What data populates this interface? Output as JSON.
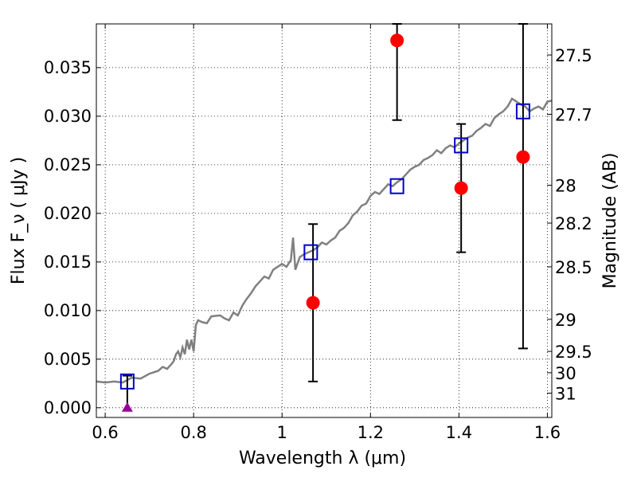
{
  "chart_data": {
    "type": "scatter",
    "xlabel": "Wavelength  λ (μm)",
    "ylabel": "Flux  F_ν  ( μJy )",
    "ylabel_right": "Magnitude (AB)",
    "xlim": [
      0.58,
      1.61
    ],
    "ylim": [
      -0.001,
      0.0395
    ],
    "grid": true,
    "x_ticks": [
      {
        "value": 0.6,
        "label": "0.6"
      },
      {
        "value": 0.8,
        "label": "0.8"
      },
      {
        "value": 1.0,
        "label": "1"
      },
      {
        "value": 1.2,
        "label": "1.2"
      },
      {
        "value": 1.4,
        "label": "1.4"
      },
      {
        "value": 1.6,
        "label": "1.6"
      }
    ],
    "y_ticks": [
      {
        "value": 0.0,
        "label": "0.000"
      },
      {
        "value": 0.005,
        "label": "0.005"
      },
      {
        "value": 0.01,
        "label": "0.010"
      },
      {
        "value": 0.015,
        "label": "0.015"
      },
      {
        "value": 0.02,
        "label": "0.020"
      },
      {
        "value": 0.025,
        "label": "0.025"
      },
      {
        "value": 0.03,
        "label": "0.030"
      },
      {
        "value": 0.035,
        "label": "0.035"
      }
    ],
    "y2_ticks": [
      {
        "flux": 0.0363,
        "label": "27.5"
      },
      {
        "flux": 0.0302,
        "label": "27.7"
      },
      {
        "flux": 0.0229,
        "label": "28"
      },
      {
        "flux": 0.019,
        "label": "28.2"
      },
      {
        "flux": 0.0145,
        "label": "28.5"
      },
      {
        "flux": 0.0091,
        "label": "29"
      },
      {
        "flux": 0.0058,
        "label": "29.5"
      },
      {
        "flux": 0.0036,
        "label": "30"
      },
      {
        "flux": 0.0015,
        "label": "31"
      }
    ],
    "series": [
      {
        "kind": "model_spectrum",
        "color": "#808080",
        "points": [
          [
            0.58,
            0.0027
          ],
          [
            0.6,
            0.0026
          ],
          [
            0.62,
            0.0027
          ],
          [
            0.64,
            0.0026
          ],
          [
            0.66,
            0.0031
          ],
          [
            0.68,
            0.003
          ],
          [
            0.7,
            0.0035
          ],
          [
            0.72,
            0.0038
          ],
          [
            0.73,
            0.0042
          ],
          [
            0.74,
            0.004
          ],
          [
            0.75,
            0.0045
          ],
          [
            0.755,
            0.0048
          ],
          [
            0.76,
            0.0055
          ],
          [
            0.765,
            0.0058
          ],
          [
            0.77,
            0.0052
          ],
          [
            0.775,
            0.0062
          ],
          [
            0.78,
            0.0055
          ],
          [
            0.785,
            0.007
          ],
          [
            0.79,
            0.006
          ],
          [
            0.795,
            0.007
          ],
          [
            0.8,
            0.0058
          ],
          [
            0.805,
            0.0085
          ],
          [
            0.81,
            0.009
          ],
          [
            0.82,
            0.0088
          ],
          [
            0.83,
            0.0087
          ],
          [
            0.84,
            0.0094
          ],
          [
            0.86,
            0.0095
          ],
          [
            0.87,
            0.0092
          ],
          [
            0.88,
            0.009
          ],
          [
            0.89,
            0.0098
          ],
          [
            0.9,
            0.0095
          ],
          [
            0.91,
            0.0105
          ],
          [
            0.92,
            0.0112
          ],
          [
            0.93,
            0.0118
          ],
          [
            0.94,
            0.0125
          ],
          [
            0.95,
            0.013
          ],
          [
            0.96,
            0.0135
          ],
          [
            0.97,
            0.0133
          ],
          [
            0.98,
            0.0142
          ],
          [
            0.99,
            0.0145
          ],
          [
            1.0,
            0.0148
          ],
          [
            1.01,
            0.0145
          ],
          [
            1.02,
            0.0152
          ],
          [
            1.025,
            0.0175
          ],
          [
            1.03,
            0.0142
          ],
          [
            1.04,
            0.0155
          ],
          [
            1.05,
            0.0158
          ],
          [
            1.06,
            0.016
          ],
          [
            1.07,
            0.0162
          ],
          [
            1.08,
            0.0165
          ],
          [
            1.09,
            0.017
          ],
          [
            1.1,
            0.0168
          ],
          [
            1.11,
            0.0172
          ],
          [
            1.12,
            0.0175
          ],
          [
            1.13,
            0.0182
          ],
          [
            1.14,
            0.0185
          ],
          [
            1.15,
            0.019
          ],
          [
            1.16,
            0.0198
          ],
          [
            1.17,
            0.0202
          ],
          [
            1.18,
            0.0208
          ],
          [
            1.19,
            0.021
          ],
          [
            1.2,
            0.0218
          ],
          [
            1.21,
            0.0222
          ],
          [
            1.22,
            0.022
          ],
          [
            1.23,
            0.0225
          ],
          [
            1.24,
            0.023
          ],
          [
            1.25,
            0.0228
          ],
          [
            1.26,
            0.0232
          ],
          [
            1.27,
            0.0235
          ],
          [
            1.28,
            0.024
          ],
          [
            1.29,
            0.0245
          ],
          [
            1.3,
            0.0248
          ],
          [
            1.31,
            0.025
          ],
          [
            1.32,
            0.0255
          ],
          [
            1.33,
            0.0257
          ],
          [
            1.34,
            0.026
          ],
          [
            1.35,
            0.0265
          ],
          [
            1.36,
            0.0262
          ],
          [
            1.37,
            0.0267
          ],
          [
            1.38,
            0.027
          ],
          [
            1.39,
            0.0268
          ],
          [
            1.4,
            0.0272
          ],
          [
            1.41,
            0.0275
          ],
          [
            1.42,
            0.0278
          ],
          [
            1.43,
            0.028
          ],
          [
            1.44,
            0.0285
          ],
          [
            1.45,
            0.0288
          ],
          [
            1.46,
            0.0292
          ],
          [
            1.47,
            0.029
          ],
          [
            1.48,
            0.0298
          ],
          [
            1.49,
            0.0302
          ],
          [
            1.5,
            0.0305
          ],
          [
            1.51,
            0.031
          ],
          [
            1.52,
            0.0318
          ],
          [
            1.53,
            0.0315
          ],
          [
            1.54,
            0.0312
          ],
          [
            1.55,
            0.031
          ],
          [
            1.56,
            0.0305
          ],
          [
            1.57,
            0.0308
          ],
          [
            1.58,
            0.031
          ],
          [
            1.59,
            0.0307
          ],
          [
            1.6,
            0.0315
          ],
          [
            1.61,
            0.0316
          ]
        ]
      },
      {
        "kind": "model_photometry",
        "marker": "open_square",
        "color": "#0000cc",
        "points": [
          [
            0.65,
            0.0027
          ],
          [
            1.065,
            0.016
          ],
          [
            1.26,
            0.0228
          ],
          [
            1.405,
            0.027
          ],
          [
            1.545,
            0.0305
          ]
        ]
      },
      {
        "kind": "observed",
        "marker": "filled_circle",
        "color": "#ff0000",
        "points": [
          {
            "x": 1.07,
            "y": 0.0108,
            "lo": 0.0027,
            "hi": 0.0189
          },
          {
            "x": 1.26,
            "y": 0.0378,
            "lo": 0.0296,
            "hi": 0.0395
          },
          {
            "x": 1.405,
            "y": 0.0226,
            "lo": 0.016,
            "hi": 0.0292
          },
          {
            "x": 1.545,
            "y": 0.0258,
            "lo": 0.0061,
            "hi": 0.0395
          }
        ]
      },
      {
        "kind": "upper_limit",
        "marker": "triangle",
        "color": "#990099",
        "points": [
          {
            "x": 0.65,
            "y": 0.0,
            "hi": 0.0033
          }
        ]
      }
    ]
  }
}
